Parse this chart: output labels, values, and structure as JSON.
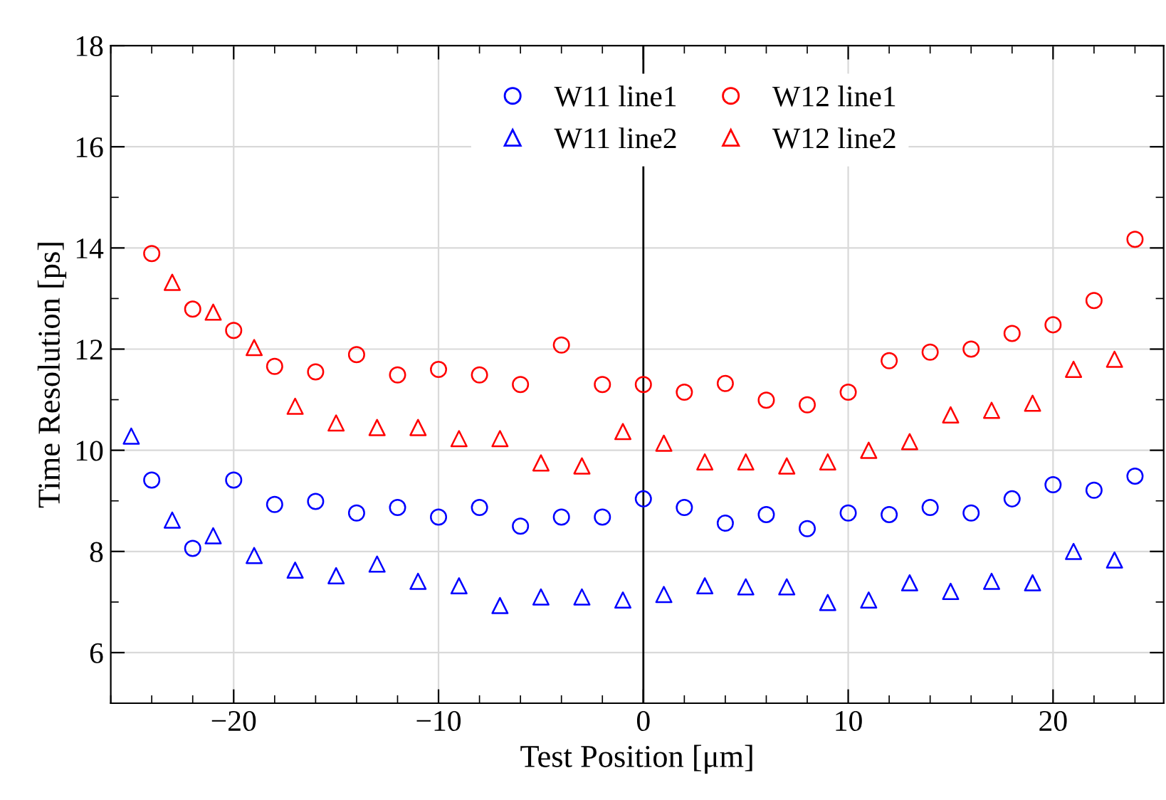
{
  "chart_data": {
    "type": "scatter",
    "xlabel": "Test Position [μm]",
    "ylabel": "Time Resolution [ps]",
    "xlim": [
      -26,
      25.4
    ],
    "ylim": [
      5,
      18
    ],
    "xticks": [
      {
        "value": -20,
        "label": "−20"
      },
      {
        "value": -10,
        "label": "−10"
      },
      0,
      10,
      20
    ],
    "yticks": [
      6,
      8,
      10,
      12,
      14,
      16,
      18
    ],
    "grid": true,
    "legend": "top",
    "line_style": "none",
    "ref_lines": [
      {
        "axis": "x",
        "value": 0,
        "color": "#000000",
        "line_style": "solid"
      }
    ],
    "series": [
      {
        "name": "W11 line1",
        "color": "#0000ff",
        "marker": "circle",
        "x": [
          -24,
          -22,
          -20,
          -18,
          -16,
          -14,
          -12,
          -10,
          -8,
          -6,
          -4,
          -2,
          0,
          2,
          4,
          6,
          8,
          10,
          12,
          14,
          16,
          18,
          20,
          22,
          24
        ],
        "values": [
          9.41,
          8.06,
          9.41,
          8.93,
          8.99,
          8.76,
          8.87,
          8.68,
          8.87,
          8.5,
          8.68,
          8.68,
          9.04,
          8.87,
          8.56,
          8.73,
          8.45,
          8.76,
          8.73,
          8.87,
          8.76,
          9.04,
          9.32,
          9.21,
          9.49
        ]
      },
      {
        "name": "W11 line2",
        "color": "#0000ff",
        "marker": "triangle",
        "x": [
          -25,
          -23,
          -21,
          -19,
          -17,
          -15,
          -13,
          -11,
          -9,
          -7,
          -5,
          -3,
          -1,
          1,
          3,
          5,
          7,
          9,
          11,
          13,
          15,
          17,
          19,
          21,
          23
        ],
        "values": [
          10.28,
          8.62,
          8.31,
          7.92,
          7.63,
          7.52,
          7.75,
          7.41,
          7.32,
          6.93,
          7.1,
          7.1,
          7.04,
          7.15,
          7.32,
          7.3,
          7.3,
          6.99,
          7.04,
          7.38,
          7.21,
          7.41,
          7.38,
          8.0,
          7.83
        ]
      },
      {
        "name": "W12 line1",
        "color": "#ff0000",
        "marker": "circle",
        "x": [
          -24,
          -22,
          -20,
          -18,
          -16,
          -14,
          -12,
          -10,
          -8,
          -6,
          -4,
          -2,
          0,
          2,
          4,
          6,
          8,
          10,
          12,
          14,
          16,
          18,
          20,
          22,
          24
        ],
        "values": [
          13.89,
          12.79,
          12.37,
          11.66,
          11.55,
          11.89,
          11.49,
          11.6,
          11.49,
          11.3,
          12.08,
          11.3,
          11.3,
          11.15,
          11.32,
          10.99,
          10.9,
          11.15,
          11.77,
          11.94,
          12.0,
          12.31,
          12.48,
          12.96,
          14.17
        ]
      },
      {
        "name": "W12 line2",
        "color": "#ff0000",
        "marker": "triangle",
        "x": [
          -23,
          -21,
          -19,
          -17,
          -15,
          -13,
          -11,
          -9,
          -7,
          -5,
          -3,
          -1,
          1,
          3,
          5,
          7,
          9,
          11,
          13,
          15,
          17,
          19,
          21,
          23
        ],
        "values": [
          13.32,
          12.73,
          12.03,
          10.87,
          10.54,
          10.45,
          10.45,
          10.23,
          10.23,
          9.75,
          9.69,
          10.37,
          10.14,
          9.77,
          9.77,
          9.69,
          9.77,
          10.0,
          10.17,
          10.7,
          10.79,
          10.93,
          11.6,
          11.8
        ]
      }
    ]
  }
}
